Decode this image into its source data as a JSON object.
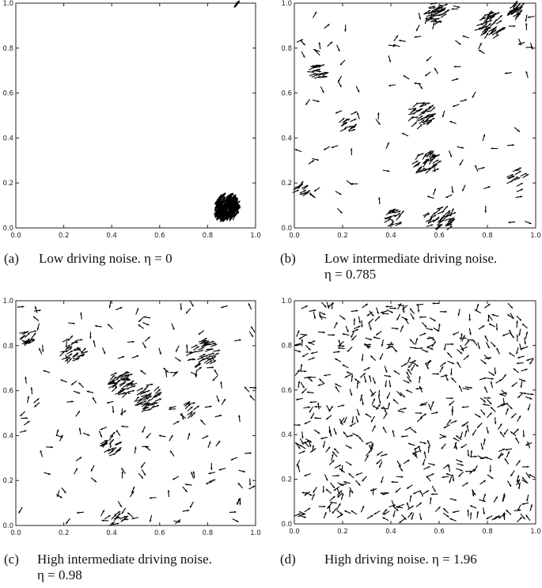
{
  "chart_data": [
    {
      "type": "scatter",
      "panel_tag": "(a)",
      "caption": "Low driving noise. η = 0",
      "caption_cont": "",
      "xlim": [
        0,
        1
      ],
      "ylim": [
        0,
        1
      ],
      "xticks": [
        "0.0",
        "0.2",
        "0.4",
        "0.6",
        "0.8",
        "1.0"
      ],
      "yticks": [
        "0.0",
        "0.2",
        "0.4",
        "0.6",
        "0.8",
        "1.0"
      ],
      "grid": false,
      "marker": "arrow",
      "seed": 11,
      "clusters": [
        {
          "x": 0.88,
          "y": 0.09,
          "r": 0.05,
          "n": 260,
          "angle": 55,
          "spread": 25
        },
        {
          "x": 0.92,
          "y": 0.995,
          "r": 0.008,
          "n": 6,
          "angle": 55,
          "spread": 20
        }
      ],
      "background": {
        "n": 0,
        "spread": 0
      }
    },
    {
      "type": "scatter",
      "panel_tag": "(b)",
      "caption": "Low intermediate driving noise.",
      "caption_cont": "η = 0.785",
      "xlim": [
        0,
        1
      ],
      "ylim": [
        0,
        1
      ],
      "xticks": [
        "0.0",
        "0.2",
        "0.4",
        "0.6",
        "0.8",
        "1.0"
      ],
      "yticks": [
        "0.0",
        "0.2",
        "0.4",
        "0.6",
        "0.8",
        "1.0"
      ],
      "grid": false,
      "marker": "arrow",
      "seed": 23,
      "clusters": [
        {
          "x": 0.59,
          "y": 0.97,
          "r": 0.05,
          "n": 45,
          "angle": 20,
          "spread": 35
        },
        {
          "x": 0.82,
          "y": 0.9,
          "r": 0.05,
          "n": 40,
          "angle": 40,
          "spread": 35
        },
        {
          "x": 0.92,
          "y": 0.97,
          "r": 0.03,
          "n": 25,
          "angle": 40,
          "spread": 35
        },
        {
          "x": 0.1,
          "y": 0.69,
          "r": 0.035,
          "n": 20,
          "angle": 10,
          "spread": 40
        },
        {
          "x": 0.53,
          "y": 0.5,
          "r": 0.05,
          "n": 35,
          "angle": 25,
          "spread": 40
        },
        {
          "x": 0.55,
          "y": 0.29,
          "r": 0.05,
          "n": 35,
          "angle": 40,
          "spread": 40
        },
        {
          "x": 0.6,
          "y": 0.04,
          "r": 0.06,
          "n": 40,
          "angle": 30,
          "spread": 40
        },
        {
          "x": 0.42,
          "y": 0.04,
          "r": 0.04,
          "n": 18,
          "angle": 30,
          "spread": 40
        },
        {
          "x": 0.03,
          "y": 0.17,
          "r": 0.025,
          "n": 12,
          "angle": 30,
          "spread": 40
        },
        {
          "x": 0.22,
          "y": 0.46,
          "r": 0.03,
          "n": 12,
          "angle": 30,
          "spread": 40
        },
        {
          "x": 0.93,
          "y": 0.22,
          "r": 0.04,
          "n": 12,
          "angle": 30,
          "spread": 40
        }
      ],
      "background": {
        "n": 110,
        "spread": 60
      }
    },
    {
      "type": "scatter",
      "panel_tag": "(c)",
      "caption": "High intermediate driving noise.",
      "caption_cont": "η = 0.98",
      "xlim": [
        0,
        1
      ],
      "ylim": [
        0,
        1
      ],
      "xticks": [
        "0.0",
        "0.2",
        "0.4",
        "0.6",
        "0.8",
        "1.0"
      ],
      "yticks": [
        "0.0",
        "0.2",
        "0.4",
        "0.6",
        "0.8",
        "1.0"
      ],
      "grid": false,
      "marker": "arrow",
      "seed": 37,
      "clusters": [
        {
          "x": 0.44,
          "y": 0.63,
          "r": 0.05,
          "n": 40,
          "angle": 30,
          "spread": 45
        },
        {
          "x": 0.55,
          "y": 0.57,
          "r": 0.05,
          "n": 40,
          "angle": 30,
          "spread": 45
        },
        {
          "x": 0.78,
          "y": 0.76,
          "r": 0.06,
          "n": 40,
          "angle": 20,
          "spread": 45
        },
        {
          "x": 0.24,
          "y": 0.78,
          "r": 0.05,
          "n": 25,
          "angle": 30,
          "spread": 45
        },
        {
          "x": 0.05,
          "y": 0.84,
          "r": 0.03,
          "n": 15,
          "angle": 30,
          "spread": 45
        },
        {
          "x": 0.4,
          "y": 0.36,
          "r": 0.04,
          "n": 18,
          "angle": 30,
          "spread": 45
        },
        {
          "x": 0.42,
          "y": 0.03,
          "r": 0.04,
          "n": 15,
          "angle": 30,
          "spread": 45
        },
        {
          "x": 0.73,
          "y": 0.52,
          "r": 0.03,
          "n": 10,
          "angle": 30,
          "spread": 45
        }
      ],
      "background": {
        "n": 170,
        "spread": 80
      }
    },
    {
      "type": "scatter",
      "panel_tag": "(d)",
      "caption": "High driving noise. η = 1.96",
      "caption_cont": "",
      "xlim": [
        0,
        1
      ],
      "ylim": [
        0,
        1
      ],
      "xticks": [
        "0.0",
        "0.2",
        "0.4",
        "0.6",
        "0.8",
        "1.0"
      ],
      "yticks": [
        "0.0",
        "0.2",
        "0.4",
        "0.6",
        "0.8",
        "1.0"
      ],
      "grid": false,
      "marker": "arrow",
      "seed": 53,
      "clusters": [],
      "background": {
        "n": 560,
        "spread": 180
      }
    }
  ]
}
